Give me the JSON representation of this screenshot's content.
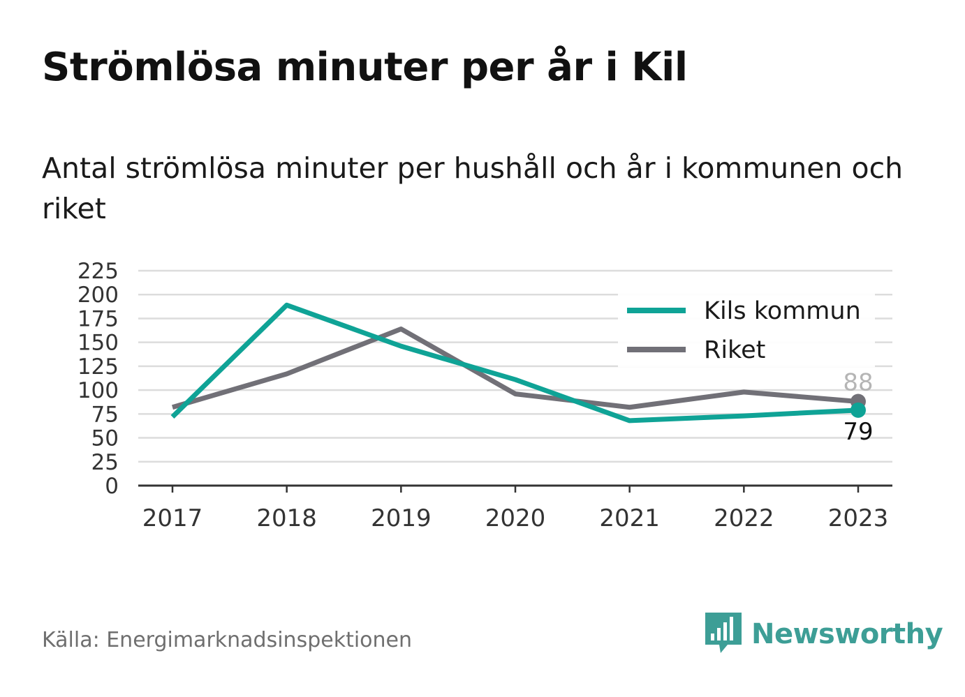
{
  "title": "Strömlösa minuter per år i Kil",
  "subtitle": "Antal strömlösa minuter per hushåll och år i kommunen och riket",
  "source": "Källa: Energimarknadsinspektionen",
  "brand": {
    "name": "Newsworthy",
    "icon": "newsworthy-logo-icon",
    "color": "#3d9e96"
  },
  "chart_data": {
    "type": "line",
    "title": "Strömlösa minuter per år i Kil",
    "x": [
      "2017",
      "2018",
      "2019",
      "2020",
      "2021",
      "2022",
      "2023"
    ],
    "xlabel": "",
    "ylabel": "",
    "ylim": [
      0,
      225
    ],
    "yticks": [
      0,
      25,
      50,
      75,
      100,
      125,
      150,
      175,
      200,
      225
    ],
    "grid": true,
    "legend_position": "top-right",
    "series": [
      {
        "name": "Kils kommun",
        "color": "#0fa396",
        "values": [
          72,
          189,
          146,
          111,
          68,
          73,
          79
        ],
        "end_label": "79"
      },
      {
        "name": "Riket",
        "color": "#717077",
        "values": [
          82,
          117,
          164,
          96,
          82,
          98,
          88
        ],
        "end_label": "88"
      }
    ]
  }
}
